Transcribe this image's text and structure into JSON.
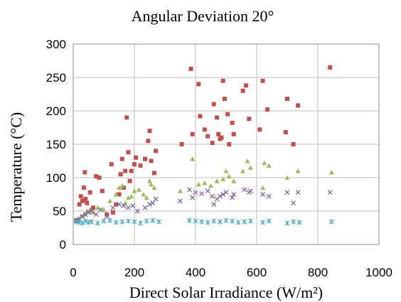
{
  "chart_data": {
    "type": "scatter",
    "title": "Angular Deviation 20°",
    "xlabel": "Direct Solar Irradiance (W/m²)",
    "ylabel": "Temperature (°C)",
    "xlim": [
      0,
      1000
    ],
    "ylim": [
      0,
      300
    ],
    "x_ticks": [
      0,
      200,
      400,
      600,
      800,
      1000
    ],
    "y_ticks": [
      0,
      50,
      100,
      150,
      200,
      250,
      300
    ],
    "grid": true,
    "legend": "none",
    "series": [
      {
        "marker": "square",
        "color": "#c0504d",
        "points": [
          [
            10,
            36
          ],
          [
            20,
            60
          ],
          [
            25,
            72
          ],
          [
            30,
            65
          ],
          [
            35,
            85
          ],
          [
            38,
            108
          ],
          [
            40,
            68
          ],
          [
            45,
            62
          ],
          [
            55,
            78
          ],
          [
            65,
            55
          ],
          [
            75,
            102
          ],
          [
            85,
            100
          ],
          [
            95,
            80
          ],
          [
            110,
            45
          ],
          [
            125,
            120
          ],
          [
            130,
            48
          ],
          [
            140,
            60
          ],
          [
            150,
            75
          ],
          [
            155,
            105
          ],
          [
            160,
            128
          ],
          [
            165,
            85
          ],
          [
            170,
            110
          ],
          [
            175,
            190
          ],
          [
            180,
            138
          ],
          [
            185,
            95
          ],
          [
            190,
            110
          ],
          [
            200,
            120
          ],
          [
            205,
            130
          ],
          [
            220,
            118
          ],
          [
            235,
            128
          ],
          [
            245,
            155
          ],
          [
            250,
            170
          ],
          [
            255,
            125
          ],
          [
            265,
            107
          ],
          [
            270,
            140
          ],
          [
            355,
            150
          ],
          [
            385,
            263
          ],
          [
            390,
            165
          ],
          [
            410,
            240
          ],
          [
            415,
            192
          ],
          [
            430,
            172
          ],
          [
            440,
            162
          ],
          [
            455,
            152
          ],
          [
            460,
            210
          ],
          [
            470,
            190
          ],
          [
            475,
            165
          ],
          [
            480,
            158
          ],
          [
            485,
            160
          ],
          [
            490,
            245
          ],
          [
            495,
            218
          ],
          [
            505,
            195
          ],
          [
            510,
            150
          ],
          [
            520,
            182
          ],
          [
            525,
            165
          ],
          [
            555,
            230
          ],
          [
            565,
            238
          ],
          [
            575,
            188
          ],
          [
            610,
            172
          ],
          [
            620,
            245
          ],
          [
            635,
            202
          ],
          [
            695,
            168
          ],
          [
            700,
            218
          ],
          [
            720,
            150
          ],
          [
            735,
            208
          ],
          [
            840,
            265
          ]
        ]
      },
      {
        "marker": "triangle",
        "color": "#9bbb59",
        "points": [
          [
            15,
            37
          ],
          [
            25,
            42
          ],
          [
            35,
            45
          ],
          [
            45,
            50
          ],
          [
            55,
            52
          ],
          [
            65,
            48
          ],
          [
            80,
            55
          ],
          [
            100,
            52
          ],
          [
            120,
            65
          ],
          [
            140,
            75
          ],
          [
            150,
            85
          ],
          [
            160,
            88
          ],
          [
            170,
            62
          ],
          [
            180,
            70
          ],
          [
            190,
            72
          ],
          [
            200,
            80
          ],
          [
            215,
            82
          ],
          [
            230,
            75
          ],
          [
            240,
            70
          ],
          [
            250,
            95
          ],
          [
            255,
            90
          ],
          [
            265,
            85
          ],
          [
            350,
            80
          ],
          [
            390,
            128
          ],
          [
            410,
            90
          ],
          [
            430,
            92
          ],
          [
            450,
            88
          ],
          [
            470,
            95
          ],
          [
            490,
            98
          ],
          [
            500,
            110
          ],
          [
            510,
            102
          ],
          [
            525,
            95
          ],
          [
            555,
            110
          ],
          [
            570,
            125
          ],
          [
            580,
            115
          ],
          [
            620,
            85
          ],
          [
            625,
            122
          ],
          [
            640,
            118
          ],
          [
            700,
            100
          ],
          [
            735,
            110
          ],
          [
            845,
            108
          ]
        ]
      },
      {
        "marker": "x",
        "color": "#8064a2",
        "points": [
          [
            10,
            36
          ],
          [
            20,
            38
          ],
          [
            30,
            42
          ],
          [
            40,
            45
          ],
          [
            50,
            48
          ],
          [
            60,
            50
          ],
          [
            75,
            45
          ],
          [
            90,
            52
          ],
          [
            110,
            42
          ],
          [
            130,
            55
          ],
          [
            150,
            60
          ],
          [
            165,
            58
          ],
          [
            180,
            55
          ],
          [
            195,
            58
          ],
          [
            210,
            50
          ],
          [
            235,
            55
          ],
          [
            250,
            60
          ],
          [
            260,
            62
          ],
          [
            270,
            68
          ],
          [
            350,
            65
          ],
          [
            380,
            82
          ],
          [
            390,
            70
          ],
          [
            400,
            78
          ],
          [
            420,
            76
          ],
          [
            440,
            80
          ],
          [
            455,
            72
          ],
          [
            460,
            60
          ],
          [
            470,
            68
          ],
          [
            480,
            72
          ],
          [
            490,
            75
          ],
          [
            500,
            78
          ],
          [
            520,
            70
          ],
          [
            525,
            75
          ],
          [
            560,
            82
          ],
          [
            575,
            78
          ],
          [
            580,
            80
          ],
          [
            620,
            75
          ],
          [
            640,
            72
          ],
          [
            700,
            78
          ],
          [
            720,
            62
          ],
          [
            735,
            78
          ],
          [
            840,
            78
          ]
        ]
      },
      {
        "marker": "star",
        "color": "#4bacc6",
        "points": [
          [
            10,
            34
          ],
          [
            20,
            33
          ],
          [
            30,
            32
          ],
          [
            40,
            35
          ],
          [
            50,
            33
          ],
          [
            60,
            34
          ],
          [
            80,
            32
          ],
          [
            100,
            35
          ],
          [
            120,
            36
          ],
          [
            140,
            33
          ],
          [
            160,
            34
          ],
          [
            180,
            35
          ],
          [
            200,
            34
          ],
          [
            220,
            32
          ],
          [
            240,
            35
          ],
          [
            260,
            36
          ],
          [
            280,
            34
          ],
          [
            380,
            36
          ],
          [
            400,
            35
          ],
          [
            420,
            34
          ],
          [
            440,
            33
          ],
          [
            460,
            35
          ],
          [
            480,
            34
          ],
          [
            500,
            36
          ],
          [
            520,
            35
          ],
          [
            540,
            33
          ],
          [
            560,
            34
          ],
          [
            580,
            35
          ],
          [
            620,
            33
          ],
          [
            640,
            35
          ],
          [
            700,
            32
          ],
          [
            720,
            34
          ],
          [
            740,
            33
          ],
          [
            845,
            34
          ]
        ]
      }
    ]
  }
}
